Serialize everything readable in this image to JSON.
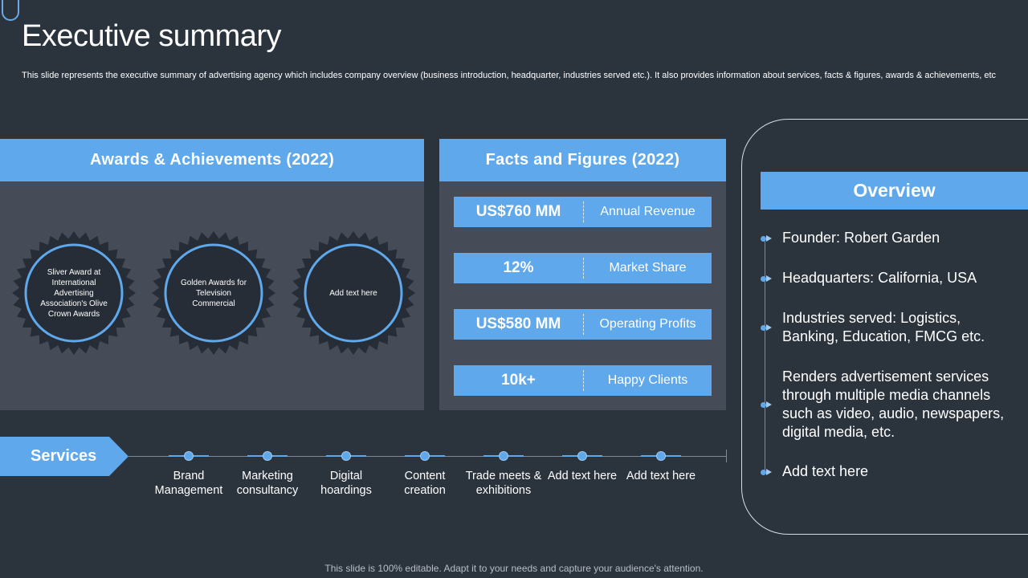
{
  "slide": {
    "title": "Executive summary",
    "subtitle": "This slide represents the executive summary of advertising agency which includes company overview (business introduction, headquarter, industries served etc.). It also provides information about services, facts & figures, awards & achievements, etc",
    "footer": "This slide is 100% editable. Adapt it to your needs and capture your audience's attention."
  },
  "awards": {
    "header": "Awards & Achievements (2022)",
    "items": [
      {
        "text": "Sliver Award at International Advertising Association's Olive Crown Awards"
      },
      {
        "text": "Golden Awards for Television Commercial"
      },
      {
        "text": "Add text here"
      }
    ]
  },
  "facts": {
    "header": "Facts and Figures (2022)",
    "items": [
      {
        "value": "US$760 MM",
        "label": "Annual Revenue"
      },
      {
        "value": "12%",
        "label": "Market Share"
      },
      {
        "value": "US$580 MM",
        "label": "Operating Profits"
      },
      {
        "value": "10k+",
        "label": "Happy Clients"
      }
    ]
  },
  "overview": {
    "header": "Overview",
    "items": [
      {
        "text": "Founder: Robert Garden"
      },
      {
        "text": "Headquarters: California, USA"
      },
      {
        "text": "Industries served: Logistics, Banking, Education, FMCG etc."
      },
      {
        "text": "Renders advertisement services through multiple media channels such as video, audio, newspapers, digital media, etc."
      },
      {
        "text": "Add text here"
      }
    ]
  },
  "services": {
    "label": "Services",
    "items": [
      {
        "text": "Brand Management"
      },
      {
        "text": "Marketing consultancy"
      },
      {
        "text": "Digital hoardings"
      },
      {
        "text": "Content creation"
      },
      {
        "text": "Trade meets & exhibitions"
      },
      {
        "text": "Add text here"
      },
      {
        "text": "Add text here"
      }
    ]
  },
  "colors": {
    "background": "#2b333d",
    "panel": "#454c57",
    "accent": "#5fa8ec"
  },
  "icons": {
    "badge": "rosette-badge-icon",
    "bullet": "dot-arrow-bullet-icon",
    "service_marker": "timeline-dot-icon"
  }
}
